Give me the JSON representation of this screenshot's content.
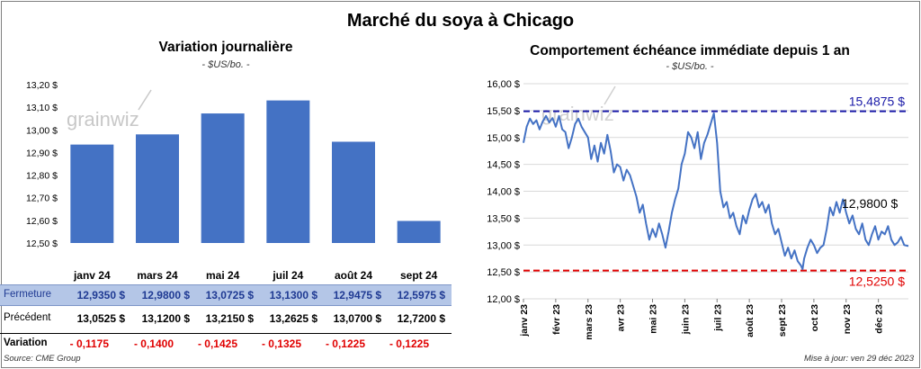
{
  "title": "Marché du soya à Chicago",
  "watermark": "grainwiz",
  "chart_data": [
    {
      "type": "bar",
      "title": "Variation journalière",
      "unit": "- $US/bo. -",
      "categories": [
        "janv 24",
        "mars 24",
        "mai 24",
        "juil 24",
        "août 24",
        "sept 24"
      ],
      "values": [
        12.935,
        12.98,
        13.0725,
        13.13,
        12.9475,
        12.5975
      ],
      "ylim": [
        12.5,
        13.2
      ],
      "yticks": [
        "12,50 $",
        "12,60 $",
        "12,70 $",
        "12,80 $",
        "12,90 $",
        "13,00 $",
        "13,10 $",
        "13,20 $"
      ],
      "color": "#4472c4"
    },
    {
      "type": "line",
      "title": "Comportement échéance immédiate depuis 1 an",
      "unit": "- $US/bo. -",
      "ylim": [
        12.0,
        16.0
      ],
      "yticks": [
        "12,00 $",
        "12,50 $",
        "13,00 $",
        "13,50 $",
        "14,00 $",
        "14,50 $",
        "15,00 $",
        "15,50 $",
        "16,00 $"
      ],
      "xticks": [
        "janv 23",
        "févr 23",
        "mars 23",
        "avr 23",
        "mai 23",
        "juin 23",
        "juil 23",
        "août 23",
        "sept 23",
        "oct 23",
        "nov 23",
        "déc 23"
      ],
      "x_range_months": [
        0,
        11.93
      ],
      "series": [
        {
          "color": "#4472c4",
          "points": [
            [
              0.0,
              14.9
            ],
            [
              0.1,
              15.2
            ],
            [
              0.2,
              15.35
            ],
            [
              0.3,
              15.25
            ],
            [
              0.4,
              15.32
            ],
            [
              0.5,
              15.15
            ],
            [
              0.6,
              15.3
            ],
            [
              0.7,
              15.4
            ],
            [
              0.8,
              15.28
            ],
            [
              0.9,
              15.36
            ],
            [
              1.0,
              15.2
            ],
            [
              1.1,
              15.4
            ],
            [
              1.2,
              15.15
            ],
            [
              1.3,
              15.1
            ],
            [
              1.4,
              14.8
            ],
            [
              1.5,
              15.0
            ],
            [
              1.6,
              15.25
            ],
            [
              1.7,
              15.35
            ],
            [
              1.8,
              15.2
            ],
            [
              1.9,
              15.1
            ],
            [
              2.0,
              15.0
            ],
            [
              2.1,
              14.6
            ],
            [
              2.2,
              14.85
            ],
            [
              2.3,
              14.55
            ],
            [
              2.4,
              14.9
            ],
            [
              2.5,
              14.7
            ],
            [
              2.6,
              15.05
            ],
            [
              2.7,
              14.75
            ],
            [
              2.8,
              14.35
            ],
            [
              2.9,
              14.5
            ],
            [
              3.0,
              14.45
            ],
            [
              3.1,
              14.2
            ],
            [
              3.2,
              14.4
            ],
            [
              3.3,
              14.3
            ],
            [
              3.4,
              14.1
            ],
            [
              3.5,
              13.9
            ],
            [
              3.6,
              13.6
            ],
            [
              3.7,
              13.75
            ],
            [
              3.8,
              13.4
            ],
            [
              3.9,
              13.1
            ],
            [
              4.0,
              13.3
            ],
            [
              4.1,
              13.15
            ],
            [
              4.2,
              13.4
            ],
            [
              4.3,
              13.2
            ],
            [
              4.4,
              12.95
            ],
            [
              4.5,
              13.25
            ],
            [
              4.6,
              13.6
            ],
            [
              4.7,
              13.85
            ],
            [
              4.8,
              14.05
            ],
            [
              4.9,
              14.5
            ],
            [
              5.0,
              14.7
            ],
            [
              5.1,
              15.1
            ],
            [
              5.2,
              15.0
            ],
            [
              5.3,
              14.8
            ],
            [
              5.4,
              15.1
            ],
            [
              5.5,
              14.6
            ],
            [
              5.6,
              14.9
            ],
            [
              5.7,
              15.05
            ],
            [
              5.8,
              15.25
            ],
            [
              5.9,
              15.45
            ],
            [
              6.0,
              14.9
            ],
            [
              6.1,
              14.0
            ],
            [
              6.2,
              13.7
            ],
            [
              6.3,
              13.8
            ],
            [
              6.4,
              13.5
            ],
            [
              6.5,
              13.6
            ],
            [
              6.6,
              13.35
            ],
            [
              6.7,
              13.2
            ],
            [
              6.8,
              13.55
            ],
            [
              6.9,
              13.4
            ],
            [
              7.0,
              13.65
            ],
            [
              7.1,
              13.85
            ],
            [
              7.2,
              13.95
            ],
            [
              7.3,
              13.7
            ],
            [
              7.4,
              13.8
            ],
            [
              7.5,
              13.6
            ],
            [
              7.6,
              13.75
            ],
            [
              7.7,
              13.4
            ],
            [
              7.8,
              13.2
            ],
            [
              7.9,
              13.3
            ],
            [
              8.0,
              13.05
            ],
            [
              8.1,
              12.8
            ],
            [
              8.2,
              12.95
            ],
            [
              8.3,
              12.75
            ],
            [
              8.4,
              12.9
            ],
            [
              8.5,
              12.7
            ],
            [
              8.6,
              12.62
            ],
            [
              8.65,
              12.55
            ],
            [
              8.7,
              12.75
            ],
            [
              8.8,
              12.95
            ],
            [
              8.9,
              13.1
            ],
            [
              9.0,
              13.0
            ],
            [
              9.1,
              12.85
            ],
            [
              9.2,
              12.95
            ],
            [
              9.3,
              13.0
            ],
            [
              9.4,
              13.3
            ],
            [
              9.5,
              13.7
            ],
            [
              9.6,
              13.55
            ],
            [
              9.7,
              13.8
            ],
            [
              9.8,
              13.6
            ],
            [
              9.9,
              13.85
            ],
            [
              10.0,
              13.6
            ],
            [
              10.1,
              13.4
            ],
            [
              10.2,
              13.55
            ],
            [
              10.3,
              13.3
            ],
            [
              10.4,
              13.2
            ],
            [
              10.5,
              13.4
            ],
            [
              10.6,
              13.1
            ],
            [
              10.7,
              13.0
            ],
            [
              10.8,
              13.2
            ],
            [
              10.9,
              13.35
            ],
            [
              11.0,
              13.1
            ],
            [
              11.1,
              13.25
            ],
            [
              11.2,
              13.2
            ],
            [
              11.3,
              13.35
            ],
            [
              11.4,
              13.1
            ],
            [
              11.5,
              13.0
            ],
            [
              11.6,
              13.05
            ],
            [
              11.7,
              13.15
            ],
            [
              11.8,
              13.0
            ],
            [
              11.93,
              12.98
            ]
          ]
        }
      ],
      "ref_high": {
        "value": 15.4875,
        "label": "15,4875 $",
        "color": "#1a1aa8"
      },
      "ref_low": {
        "value": 12.525,
        "label": "12,5250 $",
        "color": "#e00000"
      },
      "last_label": {
        "value": 12.98,
        "label": "12,9800 $"
      }
    }
  ],
  "table": {
    "rows": [
      {
        "label": "Fermeture",
        "values": [
          "12,9350  $",
          "12,9800  $",
          "13,0725  $",
          "13,1300  $",
          "12,9475  $",
          "12,5975  $"
        ]
      },
      {
        "label": "Précédent",
        "values": [
          "13,0525  $",
          "13,1200  $",
          "13,2150  $",
          "13,2625  $",
          "13,0700  $",
          "12,7200  $"
        ]
      },
      {
        "label": "Variation",
        "values": [
          "- 0,1175",
          "- 0,1400",
          "- 0,1425",
          "- 0,1325",
          "- 0,1225",
          "- 0,1225"
        ]
      }
    ]
  },
  "footer": {
    "source": "Source: CME Group",
    "update": "Mise à jour: ven 29 déc 2023"
  }
}
